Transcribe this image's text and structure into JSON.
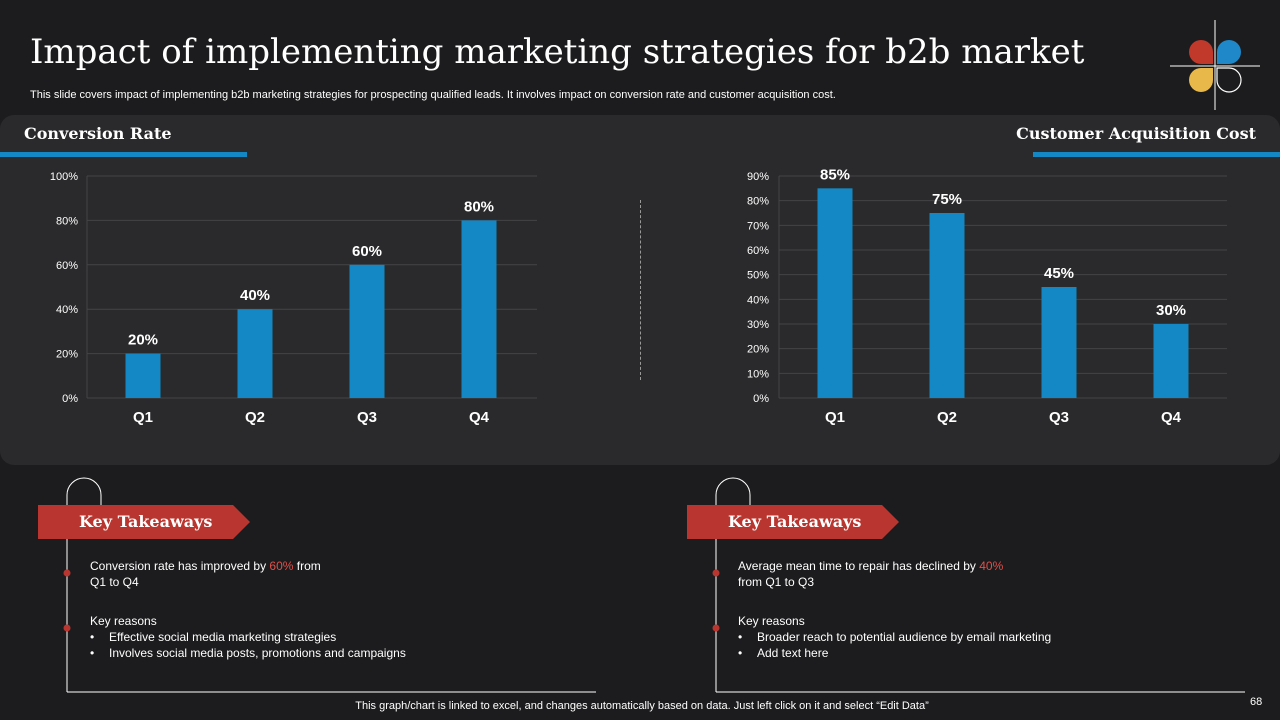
{
  "header": {
    "title": "Impact of implementing marketing strategies for b2b market",
    "subtitle": "This slide covers impact of implementing b2b marketing strategies for prospecting qualified leads. It involves impact on conversion rate and customer acquisition cost."
  },
  "colors": {
    "bar": "#1488c4",
    "accent_red": "#b8362f",
    "highlight": "#e0504a",
    "background": "#1c1c1e",
    "panel": "#2a2a2c"
  },
  "sections": {
    "left_title": "Conversion Rate",
    "right_title": "Customer Acquisition Cost"
  },
  "chart_data": [
    {
      "type": "bar",
      "title": "Conversion Rate",
      "categories": [
        "Q1",
        "Q2",
        "Q3",
        "Q4"
      ],
      "values": [
        20,
        40,
        60,
        80
      ],
      "labels": [
        "20%",
        "40%",
        "60%",
        "80%"
      ],
      "ylim": [
        0,
        100
      ],
      "yticks": [
        "0%",
        "20%",
        "40%",
        "60%",
        "80%",
        "100%"
      ],
      "grid": true
    },
    {
      "type": "bar",
      "title": "Customer Acquisition Cost",
      "categories": [
        "Q1",
        "Q2",
        "Q3",
        "Q4"
      ],
      "values": [
        85,
        75,
        45,
        30
      ],
      "labels": [
        "85%",
        "75%",
        "45%",
        "30%"
      ],
      "ylim": [
        0,
        90
      ],
      "yticks": [
        "0%",
        "10%",
        "20%",
        "30%",
        "40%",
        "50%",
        "60%",
        "70%",
        "80%",
        "90%"
      ],
      "grid": true
    }
  ],
  "takeaways": {
    "left": {
      "heading": "Key Takeaways",
      "line1_prefix": "Conversion  rate has improved  by ",
      "line1_highlight": "60%",
      "line1_suffix": " from",
      "line1_cont": "Q1 to Q4",
      "reasons_label": "Key reasons",
      "reasons": [
        "Effective social media marketing strategies",
        "Involves  social media posts, promotions and campaigns"
      ]
    },
    "right": {
      "heading": "Key Takeaways",
      "line1_prefix": "Average  mean time to repair has declined by ",
      "line1_highlight": "40%",
      "line1_suffix": "",
      "line1_cont": "from Q1 to Q3",
      "reasons_label": "Key reasons",
      "reasons": [
        "Broader reach to potential audience by email marketing",
        "Add text here"
      ]
    }
  },
  "footer": {
    "note": "This graph/chart is linked to excel,  and changes automatically based on data. Just left click on it and select “Edit Data”",
    "page_number": "68"
  }
}
